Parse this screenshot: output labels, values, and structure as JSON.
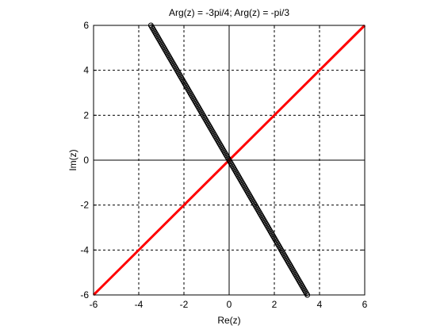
{
  "chart_data": {
    "type": "line",
    "title": "Arg(z) = -3pi/4; Arg(z) = -pi/3",
    "xlabel": "Re(z)",
    "ylabel": "Im(z)",
    "xlim": [
      -6,
      6
    ],
    "ylim": [
      -6,
      6
    ],
    "xticks": [
      -6,
      -4,
      -2,
      0,
      2,
      4,
      6
    ],
    "yticks": [
      -6,
      -4,
      -2,
      0,
      2,
      4,
      6
    ],
    "grid": true,
    "grid_style": "dashed",
    "axes_through_origin": true,
    "series": [
      {
        "style": "line",
        "color": "#ff0000",
        "x": [
          -6,
          6
        ],
        "y": [
          -6,
          6
        ]
      },
      {
        "style": "circle-markers",
        "color": "#000000",
        "x": [
          -3.46,
          3.46
        ],
        "y": [
          6,
          -6
        ]
      }
    ]
  }
}
